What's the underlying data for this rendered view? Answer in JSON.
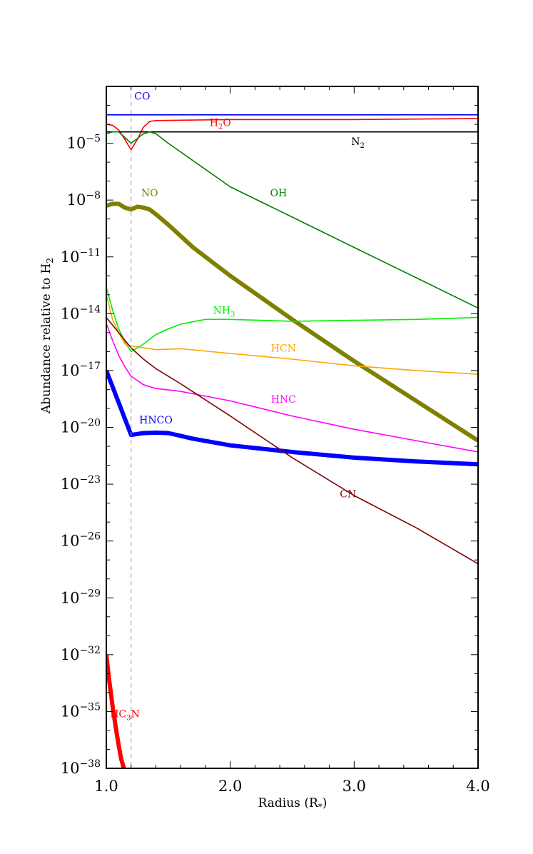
{
  "chart_data": {
    "type": "line",
    "title": "",
    "xlabel": "Radius (R",
    "xlabel_sub": "*",
    "xlabel_end": ")",
    "ylabel": "Abundance relative to H",
    "ylabel_sub": "2",
    "xlim": [
      1.0,
      4.0
    ],
    "ylim_log10": [
      -38,
      -2
    ],
    "x_ticks": [
      {
        "value": 1.0,
        "label": "1.0"
      },
      {
        "value": 2.0,
        "label": "2.0"
      },
      {
        "value": 3.0,
        "label": "3.0"
      },
      {
        "value": 4.0,
        "label": "4.0"
      }
    ],
    "y_ticks": [
      {
        "value": -5,
        "base": "10",
        "exp": "−5"
      },
      {
        "value": -8,
        "base": "10",
        "exp": "−8"
      },
      {
        "value": -11,
        "base": "10",
        "exp": "−11"
      },
      {
        "value": -14,
        "base": "10",
        "exp": "−14"
      },
      {
        "value": -17,
        "base": "10",
        "exp": "−17"
      },
      {
        "value": -20,
        "base": "10",
        "exp": "−20"
      },
      {
        "value": -23,
        "base": "10",
        "exp": "−23"
      },
      {
        "value": -26,
        "base": "10",
        "exp": "−26"
      },
      {
        "value": -29,
        "base": "10",
        "exp": "−29"
      },
      {
        "value": -32,
        "base": "10",
        "exp": "−32"
      },
      {
        "value": -35,
        "base": "10",
        "exp": "−35"
      },
      {
        "value": -38,
        "base": "10",
        "exp": "−38"
      }
    ],
    "vline_x": 1.2,
    "series": [
      {
        "name": "CO",
        "color": "#0000ff",
        "width": 1.6,
        "x": [
          1.0,
          4.0
        ],
        "y": [
          -3.5,
          -3.5
        ],
        "label": {
          "main": "CO",
          "sub": "",
          "tail": "",
          "x": 1.29,
          "y": -2.7
        }
      },
      {
        "name": "H2O",
        "color": "#ff0000",
        "width": 1.6,
        "x": [
          1.0,
          1.05,
          1.1,
          1.15,
          1.2,
          1.25,
          1.3,
          1.35,
          1.4,
          2.0,
          3.0,
          4.0
        ],
        "y": [
          -4.0,
          -4.05,
          -4.3,
          -4.8,
          -5.35,
          -4.8,
          -4.15,
          -3.85,
          -3.8,
          -3.75,
          -3.75,
          -3.7
        ],
        "label": {
          "main": "H",
          "sub": "2",
          "tail": "O",
          "x": 1.92,
          "y": -4.1
        }
      },
      {
        "name": "N2",
        "color": "#000000",
        "width": 1.6,
        "x": [
          1.0,
          4.0
        ],
        "y": [
          -4.4,
          -4.4
        ],
        "label": {
          "main": "N",
          "sub": "2",
          "tail": "",
          "x": 3.03,
          "y": -5.1
        }
      },
      {
        "name": "OH",
        "color": "#008000",
        "width": 1.6,
        "x": [
          1.0,
          1.05,
          1.1,
          1.15,
          1.2,
          1.25,
          1.3,
          1.35,
          1.4,
          1.5,
          2.0,
          2.5,
          3.0,
          3.5,
          4.0
        ],
        "y": [
          -4.5,
          -4.4,
          -4.4,
          -4.7,
          -5.0,
          -4.75,
          -4.5,
          -4.4,
          -4.5,
          -5.0,
          -7.3,
          -8.9,
          -10.5,
          -12.1,
          -13.7
        ],
        "label": {
          "main": "OH",
          "sub": "",
          "tail": "",
          "x": 2.39,
          "y": -7.8
        }
      },
      {
        "name": "NO",
        "color": "#808000",
        "width": 6,
        "x": [
          1.0,
          1.05,
          1.1,
          1.15,
          1.2,
          1.25,
          1.3,
          1.35,
          1.4,
          1.5,
          1.7,
          2.0,
          2.5,
          3.0,
          3.5,
          4.0
        ],
        "y": [
          -8.3,
          -8.2,
          -8.2,
          -8.4,
          -8.5,
          -8.35,
          -8.4,
          -8.5,
          -8.75,
          -9.3,
          -10.5,
          -12.0,
          -14.3,
          -16.5,
          -18.6,
          -20.7
        ],
        "label": {
          "main": "NO",
          "sub": "",
          "tail": "",
          "x": 1.35,
          "y": -7.8
        }
      },
      {
        "name": "NH3",
        "color": "#00ee00",
        "width": 1.6,
        "x": [
          1.0,
          1.05,
          1.1,
          1.15,
          1.2,
          1.3,
          1.4,
          1.5,
          1.6,
          1.8,
          2.0,
          2.5,
          3.0,
          3.5,
          4.0
        ],
        "y": [
          -12.6,
          -13.8,
          -14.8,
          -15.5,
          -16.0,
          -15.6,
          -15.1,
          -14.8,
          -14.55,
          -14.3,
          -14.3,
          -14.4,
          -14.35,
          -14.3,
          -14.2
        ],
        "label": {
          "main": "NH",
          "sub": "3",
          "tail": "",
          "x": 1.95,
          "y": -14.0
        }
      },
      {
        "name": "HCN",
        "color": "#ffa500",
        "width": 1.6,
        "x": [
          1.0,
          1.05,
          1.1,
          1.15,
          1.2,
          1.3,
          1.4,
          1.6,
          2.0,
          2.5,
          3.0,
          3.5,
          4.0
        ],
        "y": [
          -13.0,
          -14.3,
          -15.0,
          -15.6,
          -15.7,
          -15.8,
          -15.9,
          -15.85,
          -16.1,
          -16.4,
          -16.75,
          -17.0,
          -17.2
        ],
        "label": {
          "main": "HCN",
          "sub": "",
          "tail": "",
          "x": 2.43,
          "y": -16.0
        }
      },
      {
        "name": "HNC",
        "color": "#ff00ff",
        "width": 1.6,
        "x": [
          1.0,
          1.05,
          1.1,
          1.15,
          1.2,
          1.3,
          1.4,
          1.6,
          2.0,
          2.5,
          3.0,
          3.5,
          4.0
        ],
        "y": [
          -14.5,
          -15.4,
          -16.2,
          -16.8,
          -17.3,
          -17.75,
          -17.95,
          -18.1,
          -18.6,
          -19.4,
          -20.1,
          -20.7,
          -21.3
        ],
        "label": {
          "main": "HNC",
          "sub": "",
          "tail": "",
          "x": 2.43,
          "y": -18.7
        }
      },
      {
        "name": "HNCO",
        "color": "#0000ff",
        "width": 6,
        "x": [
          1.0,
          1.1,
          1.2,
          1.25,
          1.3,
          1.4,
          1.5,
          1.7,
          2.0,
          2.5,
          3.0,
          3.5,
          4.0
        ],
        "y": [
          -17.0,
          -18.7,
          -20.4,
          -20.35,
          -20.3,
          -20.28,
          -20.3,
          -20.6,
          -20.95,
          -21.3,
          -21.6,
          -21.8,
          -21.95
        ],
        "label": {
          "main": "HNCO",
          "sub": "",
          "tail": "",
          "x": 1.4,
          "y": -19.8
        }
      },
      {
        "name": "CN",
        "color": "#800000",
        "width": 1.6,
        "x": [
          1.0,
          1.1,
          1.2,
          1.3,
          1.4,
          1.6,
          2.0,
          2.5,
          3.0,
          3.5,
          4.0
        ],
        "y": [
          -14.2,
          -15.0,
          -15.8,
          -16.4,
          -16.9,
          -17.7,
          -19.4,
          -21.6,
          -23.6,
          -25.3,
          -27.2
        ],
        "label": {
          "main": "CN",
          "sub": "",
          "tail": "",
          "x": 2.95,
          "y": -23.7
        }
      },
      {
        "name": "HC3N",
        "color": "#ff0000",
        "width": 6,
        "x": [
          1.0,
          1.02,
          1.05,
          1.08,
          1.1,
          1.12,
          1.15
        ],
        "y": [
          -32.0,
          -33.2,
          -34.7,
          -36.0,
          -36.8,
          -37.5,
          -38.2
        ],
        "label": {
          "main": "HC",
          "sub": "3",
          "tail": "N",
          "x": 1.15,
          "y": -35.3
        }
      }
    ]
  }
}
